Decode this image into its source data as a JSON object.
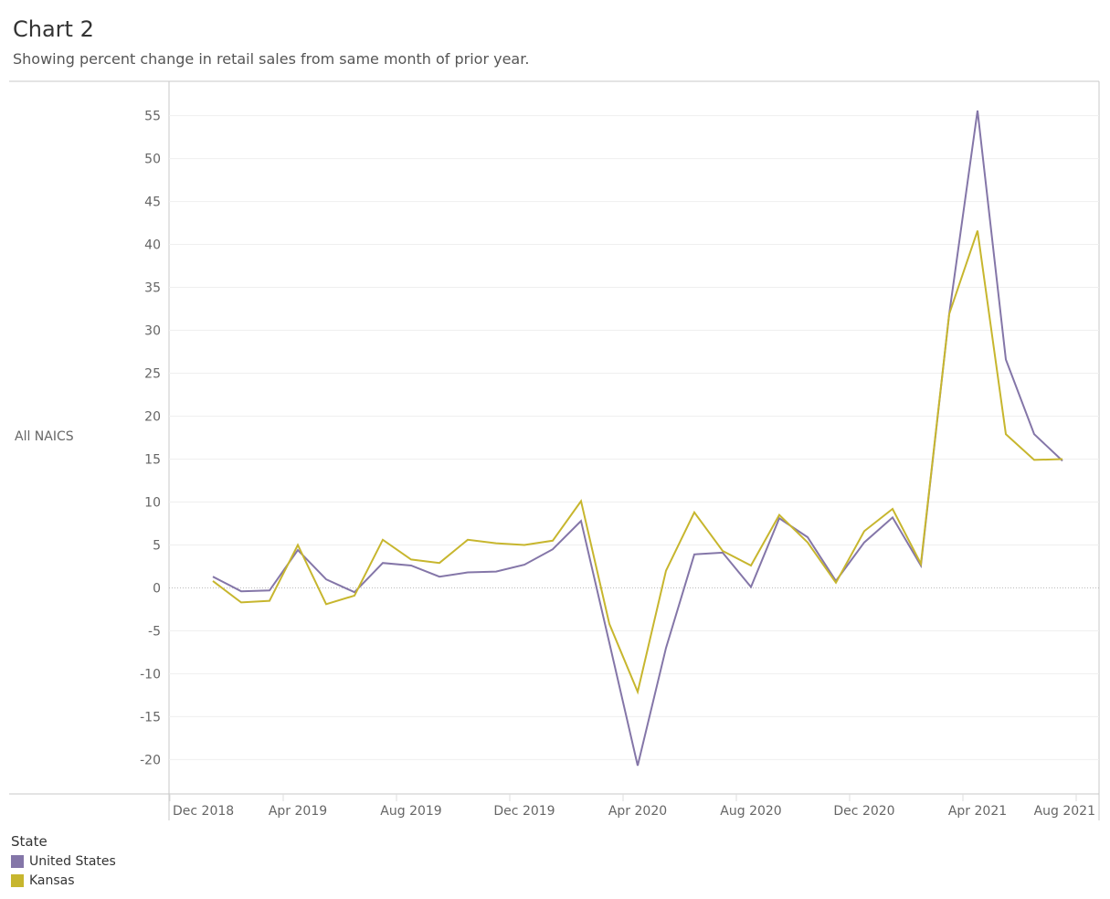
{
  "title": "Chart 2",
  "subtitle": "Showing percent change in retail sales from same month of prior year.",
  "row_header": "All NAICS",
  "legend": {
    "title": "State",
    "items": [
      {
        "label": "United States",
        "color": "#8476a8"
      },
      {
        "label": "Kansas",
        "color": "#c7b62e"
      }
    ]
  },
  "chart_data": {
    "type": "line",
    "title": "Chart 2",
    "subtitle": "Showing percent change in retail sales from same month of prior year.",
    "ylabel": "All NAICS",
    "xlabel": "",
    "ylim": [
      -24,
      59
    ],
    "yticks": [
      55,
      50,
      45,
      40,
      35,
      30,
      25,
      20,
      15,
      10,
      5,
      0,
      -5,
      -10,
      -15,
      -20
    ],
    "x": [
      "Jan 2019",
      "Feb 2019",
      "Mar 2019",
      "Apr 2019",
      "May 2019",
      "Jun 2019",
      "Jul 2019",
      "Aug 2019",
      "Sep 2019",
      "Oct 2019",
      "Nov 2019",
      "Dec 2019",
      "Jan 2020",
      "Feb 2020",
      "Mar 2020",
      "Apr 2020",
      "May 2020",
      "Jun 2020",
      "Jul 2020",
      "Aug 2020",
      "Sep 2020",
      "Oct 2020",
      "Nov 2020",
      "Dec 2020",
      "Jan 2021",
      "Feb 2021",
      "Mar 2021",
      "Apr 2021",
      "May 2021",
      "Jun 2021",
      "Jul 2021"
    ],
    "xtick_labels": [
      "Dec 2018",
      "Apr 2019",
      "Aug 2019",
      "Dec 2019",
      "Apr 2020",
      "Aug 2020",
      "Dec 2020",
      "Apr 2021",
      "Aug 2021"
    ],
    "series": [
      {
        "name": "United States",
        "color": "#8476a8",
        "values": [
          1.3,
          -0.4,
          -0.3,
          4.4,
          1.0,
          -0.5,
          2.9,
          2.6,
          1.3,
          1.8,
          1.9,
          2.7,
          4.5,
          7.8,
          -6.4,
          -20.7,
          -7.0,
          3.9,
          4.1,
          0.1,
          8.1,
          5.9,
          0.8,
          5.3,
          8.2,
          2.6,
          31.9,
          55.6,
          26.6,
          17.9,
          14.8
        ]
      },
      {
        "name": "Kansas",
        "color": "#c7b62e",
        "values": [
          0.8,
          -1.7,
          -1.5,
          5.0,
          -1.9,
          -0.9,
          5.6,
          3.3,
          2.9,
          5.6,
          5.2,
          5.0,
          5.5,
          10.1,
          -4.2,
          -12.1,
          2.0,
          8.8,
          4.3,
          2.6,
          8.5,
          5.3,
          0.6,
          6.6,
          9.2,
          2.8,
          31.9,
          41.6,
          17.9,
          14.9,
          15.0
        ]
      }
    ],
    "grid": true,
    "legend_position": "bottom-left"
  }
}
